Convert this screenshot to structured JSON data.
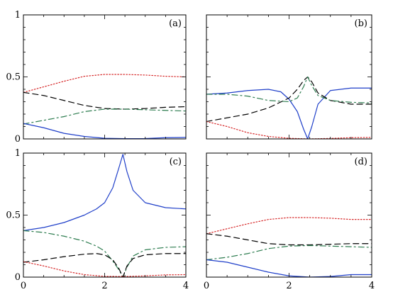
{
  "chart_data": [
    {
      "type": "line",
      "panel_label": "(a)",
      "xlim": [
        0,
        4
      ],
      "ylim": [
        0,
        1
      ],
      "ytick_labels": [
        "0",
        "0.5",
        "1"
      ],
      "xtick_labels": [],
      "series": [
        {
          "color": "#d62728",
          "dash": "dotted",
          "x": [
            0,
            0.5,
            1,
            1.5,
            2,
            2.5,
            3,
            3.5,
            4
          ],
          "values": [
            0.375,
            0.42,
            0.465,
            0.505,
            0.52,
            0.52,
            0.515,
            0.505,
            0.5
          ]
        },
        {
          "color": "#000000",
          "dash": "dashed",
          "x": [
            0,
            0.5,
            1,
            1.5,
            2,
            2.5,
            3,
            3.5,
            4
          ],
          "values": [
            0.375,
            0.35,
            0.31,
            0.27,
            0.245,
            0.24,
            0.245,
            0.255,
            0.26
          ]
        },
        {
          "color": "#2e7d50",
          "dash": "dashdot",
          "x": [
            0,
            0.5,
            1,
            1.5,
            2,
            2.5,
            3,
            3.5,
            4
          ],
          "values": [
            0.12,
            0.15,
            0.18,
            0.22,
            0.24,
            0.24,
            0.235,
            0.23,
            0.225
          ]
        },
        {
          "color": "#1f3fc9",
          "dash": "solid",
          "x": [
            0,
            0.5,
            1,
            1.5,
            2,
            2.5,
            3,
            3.5,
            4
          ],
          "values": [
            0.125,
            0.09,
            0.045,
            0.02,
            0.005,
            0.002,
            0.003,
            0.01,
            0.012
          ]
        }
      ]
    },
    {
      "type": "line",
      "panel_label": "(b)",
      "xlim": [
        0,
        4
      ],
      "ylim": [
        0,
        1
      ],
      "ytick_labels": [],
      "xtick_labels": [],
      "series": [
        {
          "color": "#1f3fc9",
          "dash": "solid",
          "x": [
            0,
            0.5,
            1,
            1.5,
            1.8,
            2,
            2.2,
            2.35,
            2.45,
            2.55,
            2.7,
            3,
            3.5,
            4
          ],
          "values": [
            0.36,
            0.37,
            0.39,
            0.4,
            0.38,
            0.32,
            0.22,
            0.08,
            0.0,
            0.1,
            0.28,
            0.39,
            0.41,
            0.41
          ]
        },
        {
          "color": "#000000",
          "dash": "dashed",
          "x": [
            0,
            0.5,
            1,
            1.5,
            2,
            2.2,
            2.35,
            2.45,
            2.55,
            2.7,
            3,
            3.5,
            4
          ],
          "values": [
            0.14,
            0.17,
            0.2,
            0.25,
            0.33,
            0.4,
            0.47,
            0.5,
            0.46,
            0.37,
            0.31,
            0.28,
            0.28
          ]
        },
        {
          "color": "#2e7d50",
          "dash": "dashdot",
          "x": [
            0,
            0.5,
            1,
            1.5,
            2,
            2.2,
            2.35,
            2.45,
            2.55,
            2.7,
            3,
            3.5,
            4
          ],
          "values": [
            0.36,
            0.36,
            0.345,
            0.31,
            0.3,
            0.33,
            0.42,
            0.5,
            0.43,
            0.35,
            0.31,
            0.295,
            0.29
          ]
        },
        {
          "color": "#d62728",
          "dash": "dotted",
          "x": [
            0,
            0.5,
            1,
            1.5,
            2,
            2.5,
            3,
            3.5,
            4
          ],
          "values": [
            0.14,
            0.1,
            0.05,
            0.02,
            0.005,
            0.0,
            0.004,
            0.01,
            0.012
          ]
        }
      ]
    },
    {
      "type": "line",
      "panel_label": "(c)",
      "xlim": [
        0,
        4
      ],
      "ylim": [
        0,
        1
      ],
      "ytick_labels": [
        "0",
        "0.5",
        "1"
      ],
      "xtick_labels": [
        "0",
        "2",
        "4"
      ],
      "series": [
        {
          "color": "#1f3fc9",
          "dash": "solid",
          "x": [
            0,
            0.5,
            1,
            1.5,
            1.8,
            2,
            2.2,
            2.35,
            2.45,
            2.55,
            2.7,
            3,
            3.5,
            4
          ],
          "values": [
            0.375,
            0.4,
            0.44,
            0.5,
            0.55,
            0.6,
            0.72,
            0.88,
            0.99,
            0.85,
            0.7,
            0.6,
            0.56,
            0.55
          ]
        },
        {
          "color": "#2e7d50",
          "dash": "dashdot",
          "x": [
            0,
            0.5,
            1,
            1.5,
            1.8,
            2,
            2.2,
            2.35,
            2.45,
            2.55,
            2.7,
            3,
            3.5,
            4
          ],
          "values": [
            0.375,
            0.36,
            0.33,
            0.29,
            0.25,
            0.21,
            0.13,
            0.06,
            0.0,
            0.08,
            0.17,
            0.22,
            0.24,
            0.245
          ]
        },
        {
          "color": "#000000",
          "dash": "dashed",
          "x": [
            0,
            0.5,
            1,
            1.5,
            1.8,
            2,
            2.2,
            2.35,
            2.45,
            2.55,
            2.7,
            3,
            3.5,
            4
          ],
          "values": [
            0.12,
            0.14,
            0.165,
            0.185,
            0.19,
            0.18,
            0.14,
            0.07,
            0.0,
            0.09,
            0.15,
            0.18,
            0.19,
            0.19
          ]
        },
        {
          "color": "#d62728",
          "dash": "dotted",
          "x": [
            0,
            0.5,
            1,
            1.5,
            2,
            2.5,
            3,
            3.5,
            4
          ],
          "values": [
            0.125,
            0.09,
            0.05,
            0.02,
            0.006,
            0.005,
            0.01,
            0.018,
            0.02
          ]
        }
      ]
    },
    {
      "type": "line",
      "panel_label": "(d)",
      "xlim": [
        0,
        4
      ],
      "ylim": [
        0,
        1
      ],
      "ytick_labels": [],
      "xtick_labels": [
        "0",
        "2",
        "4"
      ],
      "series": [
        {
          "color": "#d62728",
          "dash": "dotted",
          "x": [
            0,
            0.5,
            1,
            1.5,
            2,
            2.5,
            3,
            3.5,
            4
          ],
          "values": [
            0.35,
            0.39,
            0.43,
            0.465,
            0.48,
            0.48,
            0.475,
            0.465,
            0.465
          ]
        },
        {
          "color": "#000000",
          "dash": "dashed",
          "x": [
            0,
            0.5,
            1,
            1.5,
            2,
            2.5,
            3,
            3.5,
            4
          ],
          "values": [
            0.35,
            0.33,
            0.3,
            0.27,
            0.26,
            0.26,
            0.265,
            0.27,
            0.27
          ]
        },
        {
          "color": "#2e7d50",
          "dash": "dashdot",
          "x": [
            0,
            0.5,
            1,
            1.5,
            2,
            2.5,
            3,
            3.5,
            4
          ],
          "values": [
            0.14,
            0.16,
            0.19,
            0.23,
            0.25,
            0.255,
            0.25,
            0.245,
            0.24
          ]
        },
        {
          "color": "#1f3fc9",
          "dash": "solid",
          "x": [
            0,
            0.5,
            1,
            1.5,
            2,
            2.5,
            3,
            3.5,
            4
          ],
          "values": [
            0.14,
            0.12,
            0.08,
            0.04,
            0.01,
            0.0,
            0.005,
            0.02,
            0.02
          ]
        }
      ]
    }
  ]
}
